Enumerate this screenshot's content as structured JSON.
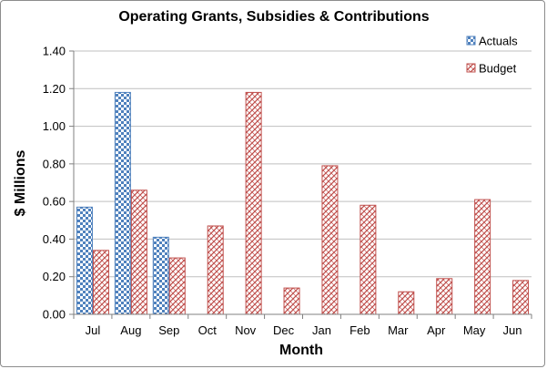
{
  "chart_data": {
    "type": "bar",
    "title": "Operating Grants, Subsidies & Contributions",
    "xlabel": "Month",
    "ylabel": "$ Millions",
    "categories": [
      "Jul",
      "Aug",
      "Sep",
      "Oct",
      "Nov",
      "Dec",
      "Jan",
      "Feb",
      "Mar",
      "Apr",
      "May",
      "Jun"
    ],
    "series": [
      {
        "name": "Actuals",
        "color": "#4f81bd",
        "pattern": "checker",
        "values": [
          0.57,
          1.18,
          0.41,
          null,
          null,
          null,
          null,
          null,
          null,
          null,
          null,
          null
        ]
      },
      {
        "name": "Budget",
        "color": "#c0504d",
        "pattern": "crosshatch",
        "values": [
          0.34,
          0.66,
          0.3,
          0.47,
          1.18,
          0.14,
          0.79,
          0.58,
          0.12,
          0.19,
          0.61,
          0.18
        ]
      }
    ],
    "ylim": [
      0,
      1.4
    ],
    "yticks": [
      "0.00",
      "0.20",
      "0.40",
      "0.60",
      "0.80",
      "1.00",
      "1.20",
      "1.40"
    ],
    "grid": true,
    "legend_position": "top-right"
  }
}
